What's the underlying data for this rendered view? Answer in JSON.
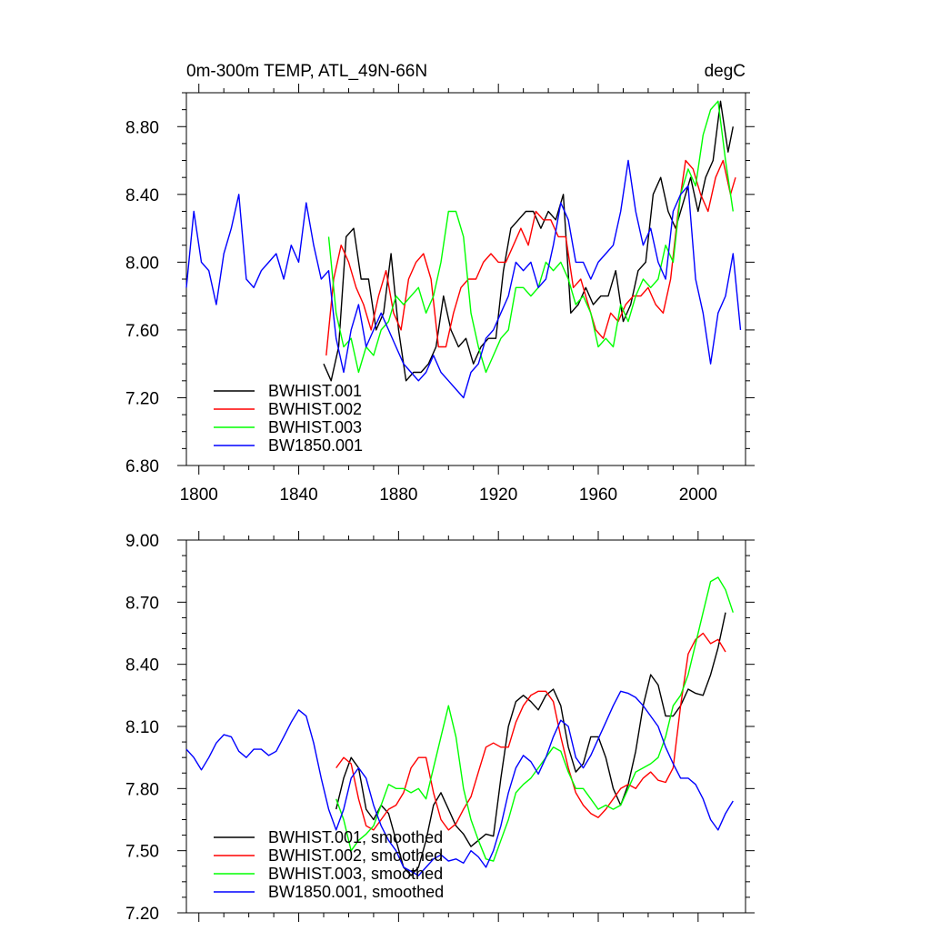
{
  "chart_data": [
    {
      "type": "line",
      "title": "0m-300m TEMP, ATL_49N-66N",
      "units": "degC",
      "xlim": [
        1795,
        2019
      ],
      "ylim": [
        6.8,
        9.0
      ],
      "x_ticks": [
        1800,
        1840,
        1880,
        1920,
        1960,
        2000
      ],
      "y_ticks": [
        6.8,
        7.2,
        7.6,
        8.0,
        8.4,
        8.8
      ],
      "y_tick_labels": [
        "6.80",
        "7.20",
        "7.60",
        "8.00",
        "8.40",
        "8.80"
      ],
      "legend_position": "bottom-left",
      "series": [
        {
          "name": "BWHIST.001",
          "color": "#000000",
          "x": [
            1850,
            1853,
            1856,
            1859,
            1862,
            1865,
            1868,
            1871,
            1874,
            1877,
            1880,
            1883,
            1886,
            1889,
            1892,
            1895,
            1898,
            1901,
            1904,
            1907,
            1910,
            1913,
            1916,
            1919,
            1922,
            1925,
            1928,
            1931,
            1934,
            1937,
            1940,
            1943,
            1946,
            1949,
            1952,
            1955,
            1958,
            1961,
            1964,
            1967,
            1970,
            1973,
            1976,
            1979,
            1982,
            1985,
            1988,
            1991,
            1994,
            1997,
            2000,
            2003,
            2006,
            2009,
            2012,
            2014
          ],
          "y": [
            7.4,
            7.3,
            7.5,
            8.15,
            8.2,
            7.9,
            7.9,
            7.6,
            7.7,
            8.05,
            7.6,
            7.3,
            7.35,
            7.35,
            7.4,
            7.5,
            7.8,
            7.6,
            7.5,
            7.55,
            7.4,
            7.5,
            7.55,
            7.55,
            7.95,
            8.2,
            8.25,
            8.3,
            8.3,
            8.2,
            8.3,
            8.25,
            8.4,
            7.7,
            7.75,
            7.85,
            7.75,
            7.8,
            7.8,
            7.95,
            7.65,
            7.75,
            7.95,
            8.0,
            8.4,
            8.5,
            8.3,
            8.2,
            8.35,
            8.5,
            8.3,
            8.5,
            8.6,
            8.95,
            8.65,
            8.8
          ]
        },
        {
          "name": "BWHIST.002",
          "color": "#ff0000",
          "x": [
            1851,
            1854,
            1857,
            1860,
            1863,
            1866,
            1869,
            1872,
            1875,
            1878,
            1881,
            1884,
            1887,
            1890,
            1893,
            1896,
            1899,
            1902,
            1905,
            1908,
            1911,
            1914,
            1917,
            1920,
            1923,
            1926,
            1929,
            1932,
            1935,
            1938,
            1941,
            1944,
            1947,
            1950,
            1953,
            1956,
            1959,
            1962,
            1965,
            1968,
            1971,
            1974,
            1977,
            1980,
            1983,
            1986,
            1989,
            1992,
            1995,
            1998,
            2001,
            2004,
            2007,
            2010,
            2013,
            2015
          ],
          "y": [
            7.45,
            7.9,
            8.1,
            8.0,
            7.85,
            7.75,
            7.6,
            7.8,
            7.95,
            7.7,
            7.6,
            7.9,
            8.0,
            8.05,
            7.9,
            7.5,
            7.5,
            7.7,
            7.85,
            7.9,
            7.9,
            8.0,
            8.05,
            8.0,
            8.0,
            8.1,
            8.2,
            8.1,
            8.3,
            8.25,
            8.25,
            8.15,
            8.15,
            7.85,
            7.9,
            7.75,
            7.6,
            7.55,
            7.7,
            7.65,
            7.75,
            7.8,
            7.8,
            7.85,
            7.75,
            7.7,
            7.9,
            8.3,
            8.6,
            8.55,
            8.4,
            8.3,
            8.5,
            8.6,
            8.4,
            8.5
          ]
        },
        {
          "name": "BWHIST.003",
          "color": "#00ff00",
          "x": [
            1852,
            1855,
            1858,
            1861,
            1864,
            1867,
            1870,
            1873,
            1876,
            1879,
            1882,
            1885,
            1888,
            1891,
            1894,
            1897,
            1900,
            1903,
            1906,
            1909,
            1912,
            1915,
            1918,
            1921,
            1924,
            1927,
            1930,
            1933,
            1936,
            1939,
            1942,
            1945,
            1948,
            1951,
            1954,
            1957,
            1960,
            1963,
            1966,
            1969,
            1972,
            1975,
            1978,
            1981,
            1984,
            1987,
            1990,
            1993,
            1996,
            1999,
            2002,
            2005,
            2008,
            2011,
            2014
          ],
          "y": [
            8.15,
            7.7,
            7.5,
            7.55,
            7.35,
            7.5,
            7.45,
            7.6,
            7.65,
            7.8,
            7.75,
            7.8,
            7.85,
            7.7,
            7.8,
            8.0,
            8.3,
            8.3,
            8.15,
            7.7,
            7.5,
            7.35,
            7.45,
            7.55,
            7.6,
            7.85,
            7.85,
            7.8,
            7.85,
            8.0,
            7.95,
            8.0,
            7.9,
            7.75,
            7.8,
            7.7,
            7.5,
            7.55,
            7.5,
            7.75,
            7.65,
            7.8,
            7.9,
            7.85,
            7.9,
            8.1,
            8.0,
            8.4,
            8.55,
            8.45,
            8.75,
            8.9,
            8.95,
            8.6,
            8.3
          ]
        },
        {
          "name": "BW1850.001",
          "color": "#0000ff",
          "x": [
            1795,
            1798,
            1801,
            1804,
            1807,
            1810,
            1813,
            1816,
            1819,
            1822,
            1825,
            1828,
            1831,
            1834,
            1837,
            1840,
            1843,
            1846,
            1849,
            1852,
            1855,
            1858,
            1861,
            1864,
            1867,
            1870,
            1873,
            1876,
            1879,
            1882,
            1885,
            1888,
            1891,
            1894,
            1897,
            1900,
            1903,
            1906,
            1909,
            1912,
            1915,
            1918,
            1921,
            1924,
            1927,
            1930,
            1933,
            1936,
            1939,
            1942,
            1945,
            1948,
            1951,
            1954,
            1957,
            1960,
            1963,
            1966,
            1969,
            1972,
            1975,
            1978,
            1981,
            1984,
            1987,
            1990,
            1993,
            1996,
            1999,
            2002,
            2005,
            2008,
            2011,
            2014,
            2017
          ],
          "y": [
            7.85,
            8.3,
            8.0,
            7.95,
            7.75,
            8.05,
            8.2,
            8.4,
            7.9,
            7.85,
            7.95,
            8.0,
            8.05,
            7.9,
            8.1,
            8.0,
            8.35,
            8.1,
            7.9,
            7.95,
            7.55,
            7.35,
            7.6,
            7.75,
            7.5,
            7.6,
            7.7,
            7.6,
            7.5,
            7.4,
            7.35,
            7.3,
            7.35,
            7.45,
            7.35,
            7.3,
            7.25,
            7.2,
            7.35,
            7.4,
            7.55,
            7.6,
            7.7,
            7.8,
            8.0,
            7.95,
            8.0,
            7.85,
            7.9,
            8.1,
            8.35,
            8.25,
            8.0,
            8.0,
            7.9,
            8.0,
            8.05,
            8.1,
            8.3,
            8.6,
            8.3,
            8.1,
            8.2,
            8.0,
            7.9,
            8.3,
            8.4,
            8.45,
            7.9,
            7.7,
            7.4,
            7.7,
            7.8,
            8.05,
            7.6
          ]
        }
      ]
    },
    {
      "type": "line",
      "xlim": [
        1795,
        2019
      ],
      "ylim": [
        7.2,
        9.0
      ],
      "x_ticks": [
        1800,
        1840,
        1880,
        1920,
        1960,
        2000
      ],
      "y_ticks": [
        7.2,
        7.5,
        7.8,
        8.1,
        8.4,
        8.7,
        9.0
      ],
      "y_tick_labels": [
        "7.20",
        "7.50",
        "7.80",
        "8.10",
        "8.40",
        "8.70",
        "9.00"
      ],
      "legend_position": "bottom-left",
      "series": [
        {
          "name": "BWHIST.001, smoothed",
          "color": "#000000",
          "x": [
            1855,
            1858,
            1861,
            1864,
            1867,
            1870,
            1873,
            1876,
            1879,
            1882,
            1885,
            1888,
            1891,
            1894,
            1897,
            1900,
            1903,
            1906,
            1909,
            1912,
            1915,
            1918,
            1921,
            1924,
            1927,
            1930,
            1933,
            1936,
            1939,
            1942,
            1945,
            1948,
            1951,
            1954,
            1957,
            1960,
            1963,
            1966,
            1969,
            1972,
            1975,
            1978,
            1981,
            1984,
            1987,
            1990,
            1993,
            1996,
            1999,
            2002,
            2005,
            2008,
            2011
          ],
          "y": [
            7.7,
            7.85,
            7.95,
            7.9,
            7.7,
            7.65,
            7.72,
            7.68,
            7.55,
            7.42,
            7.38,
            7.42,
            7.55,
            7.72,
            7.78,
            7.7,
            7.62,
            7.58,
            7.52,
            7.55,
            7.58,
            7.57,
            7.85,
            8.1,
            8.22,
            8.25,
            8.22,
            8.18,
            8.25,
            8.28,
            8.2,
            8.0,
            7.88,
            7.92,
            8.05,
            8.05,
            7.95,
            7.8,
            7.72,
            7.82,
            7.98,
            8.2,
            8.35,
            8.3,
            8.15,
            8.15,
            8.2,
            8.28,
            8.26,
            8.25,
            8.35,
            8.48,
            8.65
          ]
        },
        {
          "name": "BWHIST.002, smoothed",
          "color": "#ff0000",
          "x": [
            1855,
            1858,
            1861,
            1864,
            1867,
            1870,
            1873,
            1876,
            1879,
            1882,
            1885,
            1888,
            1891,
            1894,
            1897,
            1900,
            1903,
            1906,
            1909,
            1912,
            1915,
            1918,
            1921,
            1924,
            1927,
            1930,
            1933,
            1936,
            1939,
            1942,
            1945,
            1948,
            1951,
            1954,
            1957,
            1960,
            1963,
            1966,
            1969,
            1972,
            1975,
            1978,
            1981,
            1984,
            1987,
            1990,
            1993,
            1996,
            1999,
            2002,
            2005,
            2008,
            2011
          ],
          "y": [
            7.9,
            7.95,
            7.92,
            7.75,
            7.62,
            7.6,
            7.65,
            7.7,
            7.72,
            7.78,
            7.9,
            7.95,
            7.95,
            7.78,
            7.65,
            7.6,
            7.63,
            7.7,
            7.76,
            7.88,
            8.0,
            8.02,
            8.0,
            8.0,
            8.12,
            8.2,
            8.25,
            8.27,
            8.27,
            8.22,
            8.05,
            7.9,
            7.78,
            7.72,
            7.68,
            7.66,
            7.7,
            7.75,
            7.8,
            7.82,
            7.8,
            7.85,
            7.88,
            7.84,
            7.83,
            7.9,
            8.2,
            8.45,
            8.52,
            8.55,
            8.5,
            8.52,
            8.46
          ]
        },
        {
          "name": "BWHIST.003, smoothed",
          "color": "#00ff00",
          "x": [
            1855,
            1858,
            1861,
            1864,
            1867,
            1870,
            1873,
            1876,
            1879,
            1882,
            1885,
            1888,
            1891,
            1894,
            1897,
            1900,
            1903,
            1906,
            1909,
            1912,
            1915,
            1918,
            1921,
            1924,
            1927,
            1930,
            1933,
            1936,
            1939,
            1942,
            1945,
            1948,
            1951,
            1954,
            1957,
            1960,
            1963,
            1966,
            1969,
            1972,
            1975,
            1978,
            1981,
            1984,
            1987,
            1990,
            1993,
            1996,
            1999,
            2002,
            2005,
            2008,
            2011,
            2014
          ],
          "y": [
            7.75,
            7.65,
            7.5,
            7.55,
            7.58,
            7.62,
            7.72,
            7.82,
            7.8,
            7.8,
            7.78,
            7.8,
            7.75,
            7.9,
            8.05,
            8.2,
            8.05,
            7.8,
            7.65,
            7.55,
            7.46,
            7.45,
            7.55,
            7.65,
            7.78,
            7.82,
            7.85,
            7.9,
            7.95,
            8.0,
            7.98,
            7.88,
            7.8,
            7.8,
            7.75,
            7.7,
            7.72,
            7.7,
            7.72,
            7.8,
            7.88,
            7.9,
            7.92,
            7.95,
            8.05,
            8.2,
            8.25,
            8.35,
            8.5,
            8.65,
            8.8,
            8.82,
            8.76,
            8.65
          ]
        },
        {
          "name": "BW1850.001, smoothed",
          "color": "#0000ff",
          "x": [
            1795,
            1798,
            1801,
            1804,
            1807,
            1810,
            1813,
            1816,
            1819,
            1822,
            1825,
            1828,
            1831,
            1834,
            1837,
            1840,
            1843,
            1846,
            1849,
            1852,
            1855,
            1858,
            1861,
            1864,
            1867,
            1870,
            1873,
            1876,
            1879,
            1882,
            1885,
            1888,
            1891,
            1894,
            1897,
            1900,
            1903,
            1906,
            1909,
            1912,
            1915,
            1918,
            1921,
            1924,
            1927,
            1930,
            1933,
            1936,
            1939,
            1942,
            1945,
            1948,
            1951,
            1954,
            1957,
            1960,
            1963,
            1966,
            1969,
            1972,
            1975,
            1978,
            1981,
            1984,
            1987,
            1990,
            1993,
            1996,
            1999,
            2002,
            2005,
            2008,
            2011,
            2014
          ],
          "y": [
            7.99,
            7.95,
            7.89,
            7.95,
            8.02,
            8.06,
            8.05,
            7.98,
            7.95,
            7.99,
            7.99,
            7.96,
            7.98,
            8.05,
            8.12,
            8.18,
            8.15,
            8.02,
            7.85,
            7.7,
            7.6,
            7.7,
            7.85,
            7.9,
            7.85,
            7.72,
            7.62,
            7.55,
            7.5,
            7.42,
            7.4,
            7.38,
            7.42,
            7.46,
            7.48,
            7.45,
            7.46,
            7.44,
            7.5,
            7.47,
            7.42,
            7.5,
            7.62,
            7.78,
            7.9,
            7.96,
            7.93,
            7.87,
            7.95,
            8.05,
            8.13,
            8.1,
            7.95,
            7.9,
            7.96,
            8.04,
            8.12,
            8.2,
            8.27,
            8.26,
            8.24,
            8.2,
            8.15,
            8.1,
            8.0,
            7.92,
            7.85,
            7.85,
            7.82,
            7.75,
            7.65,
            7.6,
            7.68,
            7.74
          ]
        }
      ]
    }
  ]
}
